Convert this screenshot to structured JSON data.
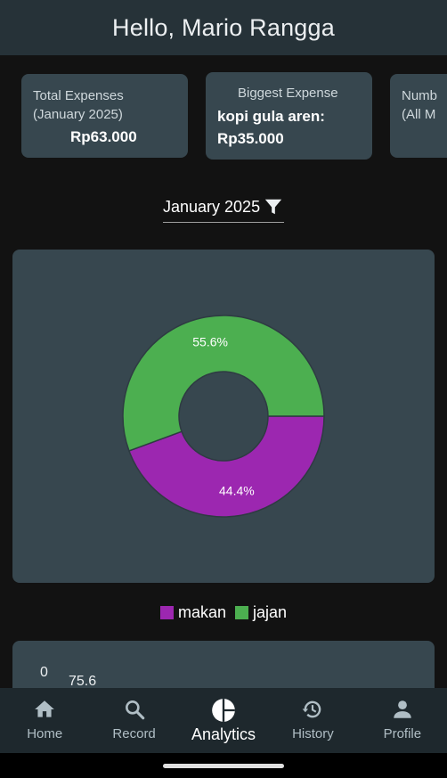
{
  "header": {
    "greeting": "Hello, Mario Rangga"
  },
  "cards": [
    {
      "label_line1": "Total Expenses",
      "label_line2": "(January 2025)",
      "value": "Rp63.000"
    },
    {
      "label": "Biggest Expense",
      "value_line1": "kopi gula aren:",
      "value_line2": "Rp35.000"
    },
    {
      "label_line1": "Numb",
      "label_line2": "(All M"
    }
  ],
  "filter": {
    "label": "January 2025",
    "icon": "filter-icon"
  },
  "chart_data": {
    "type": "pie",
    "style": "donut",
    "categories": [
      "makan",
      "jajan"
    ],
    "values": [
      44.4,
      55.6
    ],
    "labels": [
      "44.4%",
      "55.6%"
    ],
    "colors": [
      "#9c27b0",
      "#4caf50"
    ],
    "title": "",
    "legend_position": "bottom"
  },
  "legend": [
    {
      "label": "makan",
      "color": "#9c27b0"
    },
    {
      "label": "jajan",
      "color": "#4caf50"
    }
  ],
  "second_chart": {
    "tick_zero": "0",
    "value_label": "75.6"
  },
  "nav": [
    {
      "label": "Home",
      "icon": "home-icon",
      "active": false
    },
    {
      "label": "Record",
      "icon": "search-icon",
      "active": false
    },
    {
      "label": "Analytics",
      "icon": "pie-chart-icon",
      "active": true
    },
    {
      "label": "History",
      "icon": "history-icon",
      "active": false
    },
    {
      "label": "Profile",
      "icon": "person-icon",
      "active": false
    }
  ],
  "colors": {
    "appbar": "#263238",
    "card": "#37474f",
    "background": "#121212",
    "nav": "#1e282d"
  }
}
